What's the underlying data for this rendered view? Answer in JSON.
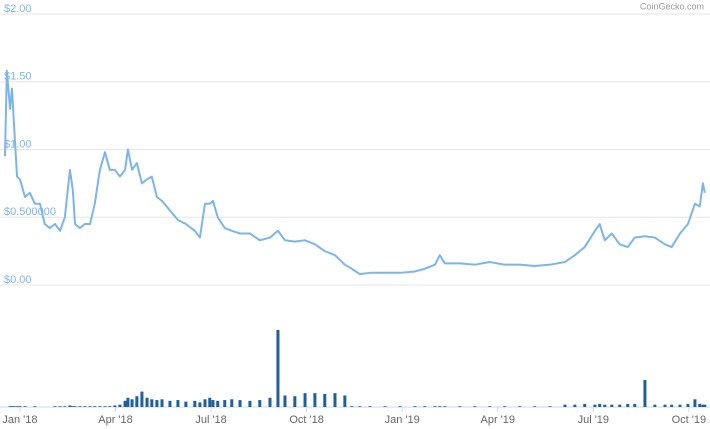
{
  "chart_data": {
    "type": "line",
    "watermark": "CoinGecko.com",
    "x": [
      -0.47,
      -0.41,
      -0.31,
      -0.25,
      -0.19,
      -0.09,
      0,
      0.16,
      0.31,
      0.47,
      0.63,
      0.78,
      0.94,
      1.1,
      1.26,
      1.41,
      1.57,
      1.66,
      1.73,
      1.88,
      2.04,
      2.2,
      2.35,
      2.51,
      2.67,
      2.82,
      2.98,
      3.14,
      3.3,
      3.39,
      3.52,
      3.67,
      3.83,
      3.99,
      4.14,
      4.3,
      4.46,
      4.71,
      4.96,
      5.21,
      5.49,
      5.65,
      5.81,
      5.96,
      6.06,
      6.21,
      6.43,
      6.65,
      6.91,
      7.22,
      7.53,
      7.85,
      8.1,
      8.32,
      8.63,
      8.95,
      9.26,
      9.57,
      9.89,
      10.2,
      10.42,
      10.67,
      10.99,
      11.46,
      11.93,
      12.4,
      12.71,
      13.03,
      13.18,
      13.34,
      13.81,
      14.28,
      14.75,
      15.22,
      15.69,
      16.16,
      16.64,
      17.11,
      17.42,
      17.73,
      18.05,
      18.2,
      18.36,
      18.58,
      18.83,
      19.08,
      19.3,
      19.62,
      19.93,
      20.25,
      20.46,
      20.72,
      20.97,
      21.19,
      21.34,
      21.44,
      21.5
    ],
    "xlim": [
      -0.5,
      21.6
    ],
    "xticks": [
      {
        "value": 0,
        "label": "Jan '18"
      },
      {
        "value": 3,
        "label": "Apr '18"
      },
      {
        "value": 6,
        "label": "Jul '18"
      },
      {
        "value": 9,
        "label": "Oct '18"
      },
      {
        "value": 12,
        "label": "Jan '19"
      },
      {
        "value": 15,
        "label": "Apr '19"
      },
      {
        "value": 18,
        "label": "Jul '19"
      },
      {
        "value": 21,
        "label": "Oct '19"
      }
    ],
    "ylim": [
      0,
      2
    ],
    "yticks": [
      {
        "value": 0,
        "label": "$0.00"
      },
      {
        "value": 0.5,
        "label": "$0.500000"
      },
      {
        "value": 1,
        "label": "$1.00"
      },
      {
        "value": 1.5,
        "label": "$1.50"
      },
      {
        "value": 2,
        "label": "$2.00"
      }
    ],
    "y2lim": [
      0,
      100
    ],
    "grid": true,
    "series": [
      {
        "type": "line",
        "color": "#7cb5ec",
        "values": [
          0.95,
          1.58,
          1.3,
          1.45,
          1.2,
          0.8,
          0.78,
          0.65,
          0.68,
          0.6,
          0.6,
          0.45,
          0.42,
          0.45,
          0.4,
          0.5,
          0.85,
          0.7,
          0.45,
          0.42,
          0.45,
          0.45,
          0.6,
          0.85,
          0.98,
          0.85,
          0.85,
          0.8,
          0.85,
          1.0,
          0.85,
          0.9,
          0.75,
          0.78,
          0.8,
          0.65,
          0.62,
          0.55,
          0.48,
          0.45,
          0.4,
          0.35,
          0.6,
          0.6,
          0.62,
          0.5,
          0.42,
          0.4,
          0.38,
          0.38,
          0.33,
          0.35,
          0.4,
          0.33,
          0.32,
          0.33,
          0.3,
          0.25,
          0.22,
          0.15,
          0.12,
          0.08,
          0.09,
          0.09,
          0.09,
          0.1,
          0.12,
          0.15,
          0.22,
          0.16,
          0.16,
          0.15,
          0.17,
          0.15,
          0.15,
          0.14,
          0.15,
          0.17,
          0.22,
          0.28,
          0.4,
          0.45,
          0.33,
          0.38,
          0.3,
          0.28,
          0.35,
          0.36,
          0.35,
          0.3,
          0.28,
          0.38,
          0.45,
          0.6,
          0.58,
          0.75,
          0.68
        ]
      },
      {
        "type": "bar",
        "axis": "y2",
        "color": "#1f5f9a",
        "values": [
          0,
          0,
          1,
          1,
          1,
          1,
          1,
          1,
          0,
          1,
          0,
          0,
          0,
          1,
          1,
          1,
          2,
          1,
          1,
          1,
          1,
          1,
          1,
          1,
          1,
          1,
          2,
          3,
          8,
          12,
          10,
          14,
          20,
          12,
          10,
          9,
          10,
          8,
          9,
          7,
          8,
          6,
          10,
          12,
          9,
          8,
          9,
          10,
          9,
          8,
          9,
          12,
          100,
          15,
          14,
          18,
          18,
          17,
          18,
          15,
          1,
          1,
          1,
          1,
          1,
          1,
          1,
          1,
          1,
          1,
          1,
          1,
          1,
          1,
          1,
          1,
          1,
          3,
          3,
          4,
          3,
          4,
          3,
          3,
          3,
          4,
          4,
          35,
          3,
          3,
          3,
          3,
          4,
          10,
          4,
          3,
          3
        ]
      }
    ]
  }
}
